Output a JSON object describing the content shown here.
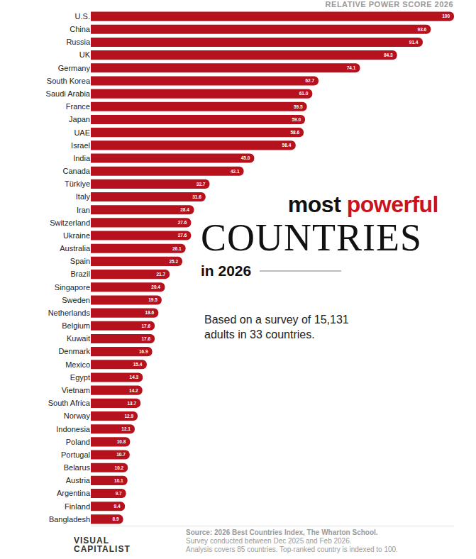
{
  "chart_data": {
    "type": "bar",
    "orientation": "horizontal",
    "header": "RELATIVE POWER SCORE 2026",
    "title": "most powerful COUNTRIES in 2026",
    "subtitle": "Based on a survey of 15,131 adults in 33 countries.",
    "categories": [
      "U.S.",
      "China",
      "Russia",
      "UK",
      "Germany",
      "South Korea",
      "Saudi Arabia",
      "France",
      "Japan",
      "UAE",
      "Israel",
      "India",
      "Canada",
      "Türkiye",
      "Italy",
      "Iran",
      "Switzerland",
      "Ukraine",
      "Australia",
      "Spain",
      "Brazil",
      "Singapore",
      "Sweden",
      "Netherlands",
      "Belgium",
      "Kuwait",
      "Denmark",
      "Mexico",
      "Egypt",
      "Vietnam",
      "South Africa",
      "Norway",
      "Indonesia",
      "Poland",
      "Portugal",
      "Belarus",
      "Austria",
      "Argentina",
      "Finland",
      "Bangladesh"
    ],
    "values": [
      100,
      93.6,
      91.4,
      84.3,
      74.1,
      62.7,
      61.0,
      59.5,
      59.0,
      58.6,
      56.4,
      45.0,
      42.1,
      32.7,
      31.6,
      28.4,
      27.6,
      27.6,
      26.1,
      25.2,
      21.7,
      20.4,
      19.5,
      18.6,
      17.6,
      17.6,
      16.9,
      15.4,
      14.3,
      14.2,
      13.7,
      12.9,
      12.1,
      10.8,
      10.7,
      10.2,
      10.1,
      9.7,
      9.4,
      8.9
    ],
    "value_labels": [
      "100",
      "93.6",
      "91.4",
      "84.3",
      "74.1",
      "62.7",
      "61.0",
      "59.5",
      "59.0",
      "58.6",
      "56.4",
      "45.0",
      "42.1",
      "32.7",
      "31.6",
      "28.4",
      "27.6",
      "27.6",
      "26.1",
      "25.2",
      "21.7",
      "20.4",
      "19.5",
      "18.6",
      "17.6",
      "17.6",
      "16.9",
      "15.4",
      "14.3",
      "14.2",
      "13.7",
      "12.9",
      "12.1",
      "10.8",
      "10.7",
      "10.2",
      "10.1",
      "9.7",
      "9.4",
      "8.9"
    ],
    "color": "#b5121d",
    "xlim": [
      0,
      100
    ],
    "xticks": [],
    "grid": false,
    "data_labels": true,
    "tick_labels": "y",
    "source": [
      "Source: 2026 Best Countries Index, The Wharton School.",
      "Survey conducted between Dec 2025 and Feb 2026.",
      "Analysis covers 85 countries. Top-ranked country is indexed to 100."
    ],
    "credit": "VISUAL CAPITALIST"
  }
}
